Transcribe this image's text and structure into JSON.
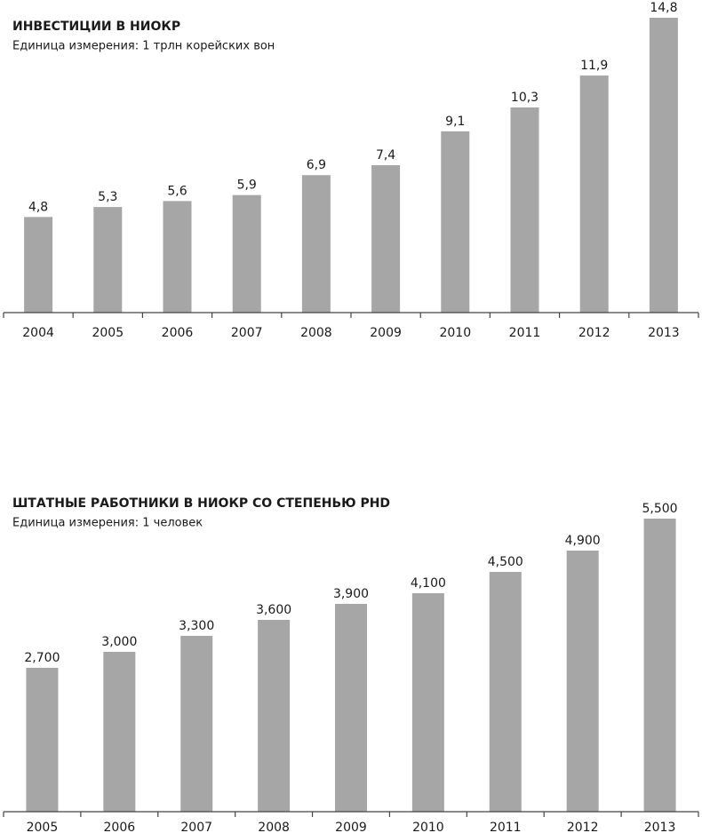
{
  "chart_data": [
    {
      "type": "bar",
      "title": "ИНВЕСТИЦИИ В НИОКР",
      "subtitle": "Единица измерения: 1 трлн корейских вон",
      "categories": [
        "2004",
        "2005",
        "2006",
        "2007",
        "2008",
        "2009",
        "2010",
        "2011",
        "2012",
        "2013"
      ],
      "values": [
        4.8,
        5.3,
        5.6,
        5.9,
        6.9,
        7.4,
        9.1,
        10.3,
        11.9,
        14.8
      ],
      "value_labels": [
        "4,8",
        "5,3",
        "5,6",
        "5,9",
        "6,9",
        "7,4",
        "9,1",
        "10,3",
        "11,9",
        "14,8"
      ],
      "color": "#a6a6a6"
    },
    {
      "type": "bar",
      "title": "ШТАТНЫЕ РАБОТНИКИ В НИОКР СО СТЕПЕНЬЮ PHD",
      "subtitle": "Единица измерения: 1 человек",
      "categories": [
        "2005",
        "2006",
        "2007",
        "2008",
        "2009",
        "2010",
        "2011",
        "2012",
        "2013"
      ],
      "values": [
        2700,
        3000,
        3300,
        3600,
        3900,
        4100,
        4500,
        4900,
        5500
      ],
      "value_labels": [
        "2,700",
        "3,000",
        "3,300",
        "3,600",
        "3,900",
        "4,100",
        "4,500",
        "4,900",
        "5,500"
      ],
      "color": "#a6a6a6"
    }
  ]
}
